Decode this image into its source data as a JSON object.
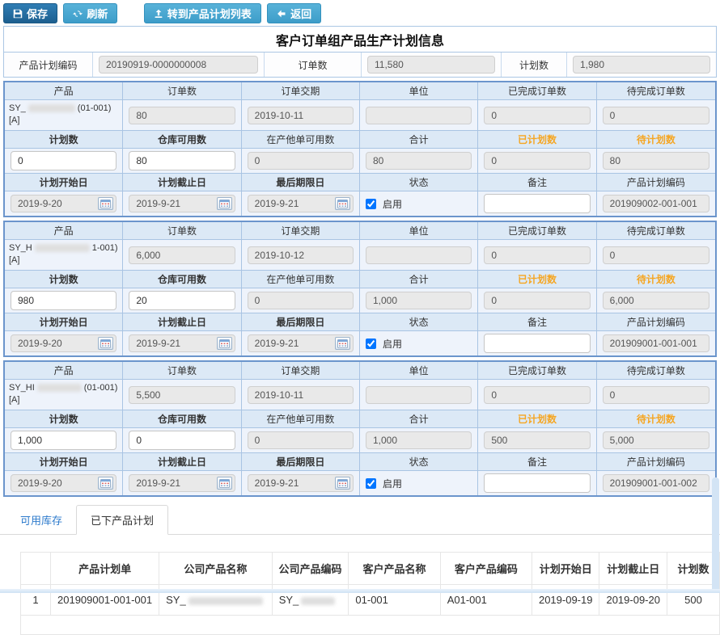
{
  "toolbar": {
    "save_label": "保存",
    "refresh_label": "刷新",
    "goto_plan_list_label": "转到产品计划列表",
    "back_label": "返回"
  },
  "header": {
    "title": "客户订单组产品生产计划信息",
    "fields": [
      {
        "label": "产品计划编码",
        "value": "20190919-0000000008"
      },
      {
        "label": "订单数",
        "value": "11,580"
      },
      {
        "label": "计划数",
        "value": "1,980"
      }
    ]
  },
  "block_labels": {
    "row1": [
      "产品",
      "订单数",
      "订单交期",
      "单位",
      "已完成订单数",
      "待完成订单数"
    ],
    "row2": [
      "计划数",
      "仓库可用数",
      "在产他单可用数",
      "合计",
      "已计划数",
      "待计划数"
    ],
    "row3": [
      "计划开始日",
      "计划截止日",
      "最后期限日",
      "状态",
      "备注",
      "产品计划编码"
    ],
    "status_checkbox_label": "启用"
  },
  "blocks": [
    {
      "product": {
        "prefix": "SY_",
        "redact_w": 58,
        "suffix": "(01-001)",
        "line2": "[A]"
      },
      "order_qty": "80",
      "order_due": "2019-10-11",
      "unit": "",
      "completed_order_qty": "0",
      "pending_order_qty": "0",
      "plan_qty": "0",
      "warehouse_available": "80",
      "other_order_available": "0",
      "total": "80",
      "planned_qty": "0",
      "to_plan_qty": "80",
      "plan_start": "2019-9-20",
      "plan_end": "2019-9-21",
      "deadline": "2019-9-21",
      "enabled": true,
      "remark": "",
      "plan_code": "201909002-001-001"
    },
    {
      "product": {
        "prefix": "SY_H",
        "redact_w": 68,
        "suffix": "1-001)",
        "line2": "[A]"
      },
      "order_qty": "6,000",
      "order_due": "2019-10-12",
      "unit": "",
      "completed_order_qty": "0",
      "pending_order_qty": "0",
      "plan_qty": "980",
      "warehouse_available": "20",
      "other_order_available": "0",
      "total": "1,000",
      "planned_qty": "0",
      "to_plan_qty": "6,000",
      "plan_start": "2019-9-20",
      "plan_end": "2019-9-21",
      "deadline": "2019-9-21",
      "enabled": true,
      "remark": "",
      "plan_code": "201909001-001-001"
    },
    {
      "product": {
        "prefix": "SY_HI",
        "redact_w": 55,
        "suffix": "(01-001)",
        "line2": "[A]"
      },
      "order_qty": "5,500",
      "order_due": "2019-10-11",
      "unit": "",
      "completed_order_qty": "0",
      "pending_order_qty": "0",
      "plan_qty": "1,000",
      "warehouse_available": "0",
      "other_order_available": "0",
      "total": "1,000",
      "planned_qty": "500",
      "to_plan_qty": "5,000",
      "plan_start": "2019-9-20",
      "plan_end": "2019-9-21",
      "deadline": "2019-9-21",
      "enabled": true,
      "remark": "",
      "plan_code": "201909001-001-002"
    }
  ],
  "tabs": [
    {
      "label": "可用库存",
      "active": false
    },
    {
      "label": "已下产品计划",
      "active": true
    }
  ],
  "plans_table": {
    "headers": [
      "",
      "产品计划单",
      "公司产品名称",
      "公司产品编码",
      "客户产品名称",
      "客户产品编码",
      "计划开始日",
      "计划截止日",
      "计划数"
    ],
    "rows": [
      [
        "1",
        "201909001-001-001",
        {
          "text": "SY_",
          "redact_w": 92
        },
        {
          "text": "SY_",
          "redact_w": 42
        },
        "01-001",
        "A01-001",
        "2019-09-19",
        "2019-09-20",
        "500"
      ]
    ]
  },
  "colors": {
    "accent_orange": "#F5A623",
    "toolbar_primary_blue": "#1E649B",
    "toolbar_secondary_blue": "#45A7D2",
    "block_border_blue": "#6B95CC",
    "label_row_bg": "#DCE9F6",
    "value_row_bg": "#EEF3FB",
    "tab_link_blue": "#2E7BCC",
    "readonly_input_bg": "#E9E9E9"
  }
}
